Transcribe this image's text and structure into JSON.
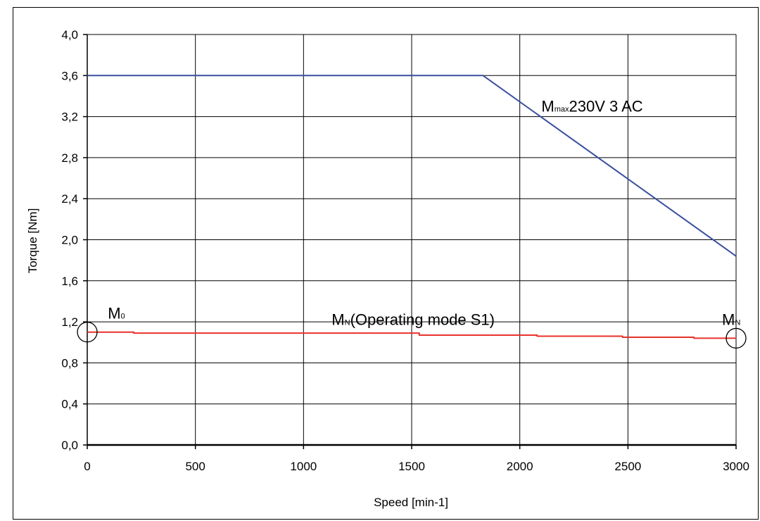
{
  "chart_data": {
    "type": "line",
    "xlabel": "Speed [min-1]",
    "ylabel": "Torque [Nm]",
    "xlim": [
      0,
      3000
    ],
    "ylim": [
      0,
      4
    ],
    "xticks": [
      0,
      500,
      1000,
      1500,
      2000,
      2500,
      3000
    ],
    "yticks": [
      0.0,
      0.4,
      0.8,
      1.2,
      1.6,
      2.0,
      2.4,
      2.8,
      3.2,
      3.6,
      4.0
    ],
    "ytick_labels": [
      "0,0",
      "0,4",
      "0,8",
      "1,2",
      "1,6",
      "2,0",
      "2,4",
      "2,8",
      "3,2",
      "3,6",
      "4,0"
    ],
    "grid": true,
    "series": [
      {
        "color": "#3a4fa0",
        "x": [
          0,
          1830,
          3000
        ],
        "y": [
          3.6,
          3.6,
          1.84
        ]
      },
      {
        "color": "#e8322b",
        "step": true,
        "x": [
          0,
          215,
          215,
          1535,
          1535,
          2080,
          2080,
          2475,
          2475,
          2805,
          2805,
          3000
        ],
        "y": [
          1.1,
          1.1,
          1.09,
          1.09,
          1.07,
          1.07,
          1.06,
          1.06,
          1.05,
          1.05,
          1.04,
          1.04
        ]
      }
    ],
    "annotations": [
      {
        "main": "M",
        "sub": "max",
        "rest": "230V 3 AC",
        "x": 2100,
        "y": 3.25
      },
      {
        "main": "M",
        "sub": "N",
        "rest": "(Operating mode S1)",
        "x": 1130,
        "y": 1.17
      },
      {
        "main": "M",
        "sub": "0",
        "rest": "",
        "x": 95,
        "y": 1.23
      },
      {
        "main": "M",
        "sub": "N",
        "rest": "",
        "x": 2935,
        "y": 1.17
      }
    ],
    "markers": [
      {
        "shape": "circle",
        "x": 0,
        "y": 1.1
      },
      {
        "shape": "circle",
        "x": 3000,
        "y": 1.04
      }
    ]
  }
}
